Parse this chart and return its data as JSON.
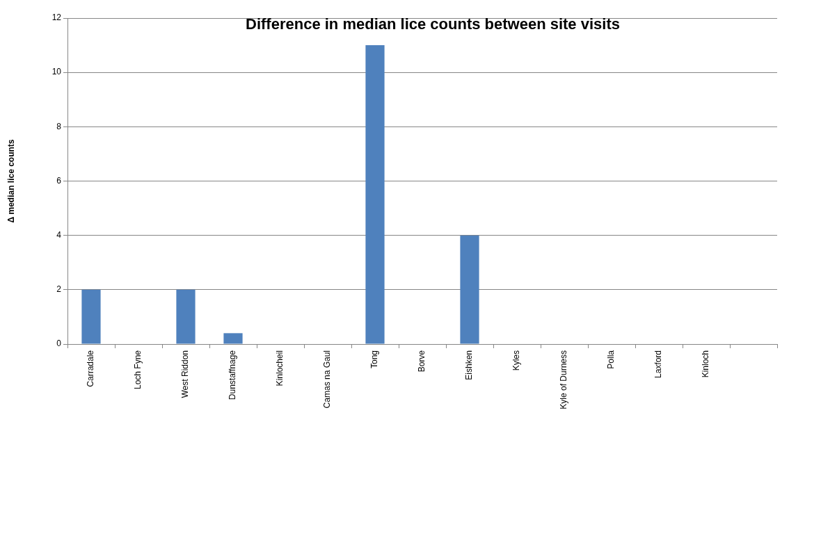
{
  "chart_data": {
    "type": "bar",
    "title": "Difference in median lice counts between site visits",
    "ylabel": "Δ median lice counts",
    "categories": [
      "Carradale",
      "Loch Fyne",
      "West Riddon",
      "Dunstaffnage",
      "Kinlocheil",
      "Camas na Gaul",
      "Tong",
      "Borve",
      "Eishken",
      "Kyles",
      "Kyle of Durness",
      "Polla",
      "Laxford",
      "Kinloch",
      null
    ],
    "values": [
      2,
      0,
      2,
      0.4,
      0,
      0,
      11,
      0,
      4,
      0,
      0,
      0,
      0,
      0,
      null
    ],
    "color": "#4f81bd",
    "ylim": [
      0,
      12
    ],
    "yticks": [
      0,
      2,
      4,
      6,
      8,
      10,
      12
    ],
    "grid": "y",
    "legend": false
  }
}
